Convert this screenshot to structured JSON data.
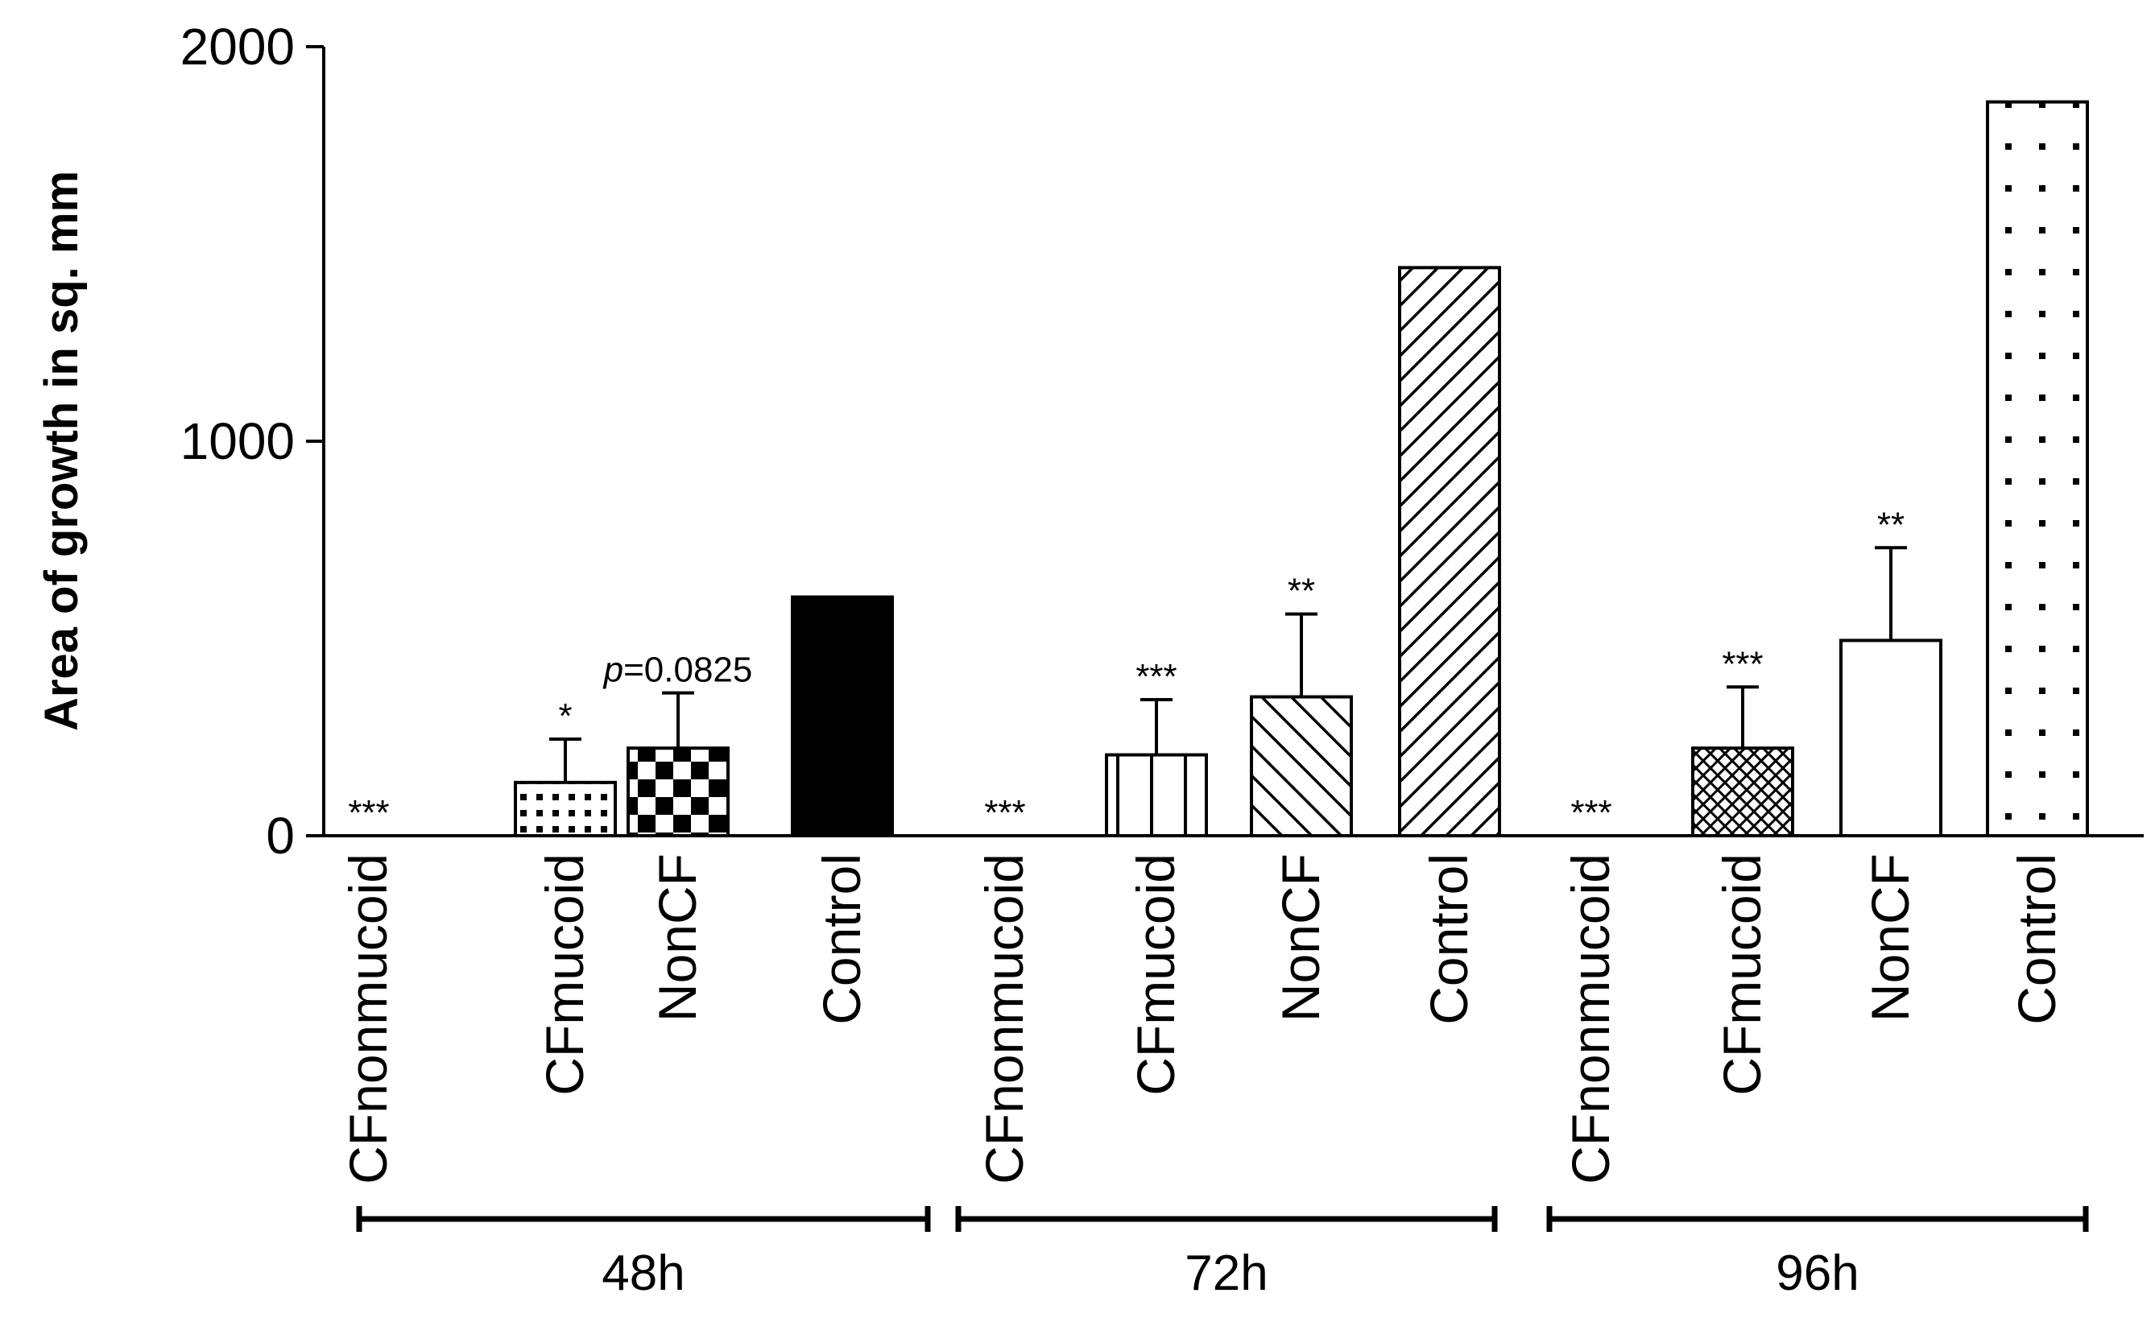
{
  "chart_data": {
    "type": "bar",
    "ylabel": "Area of growth in sq. mm",
    "xlabel": "",
    "ylim": [
      0,
      2000
    ],
    "yticks": [
      0,
      1000,
      2000
    ],
    "ytick_labels": [
      "0",
      "1000",
      "2000"
    ],
    "grid": false,
    "legend": "none",
    "groups": [
      {
        "label": "48h",
        "bars": [
          {
            "category": "CFnonmucoid",
            "value": 0,
            "error": 0,
            "annotation": "***",
            "pattern": "none"
          },
          {
            "category": "CFmucoid",
            "value": 135,
            "error": 110,
            "annotation": "*",
            "pattern": "dots-grid"
          },
          {
            "category": "NonCF",
            "value": 222,
            "error": 140,
            "annotation": "p=0.0825",
            "pattern": "checker"
          },
          {
            "category": "Control",
            "value": 605,
            "error": 0,
            "annotation": "",
            "pattern": "solid"
          }
        ]
      },
      {
        "label": "72h",
        "bars": [
          {
            "category": "CFnonmucoid",
            "value": 0,
            "error": 0,
            "annotation": "***",
            "pattern": "none"
          },
          {
            "category": "CFmucoid",
            "value": 205,
            "error": 140,
            "annotation": "***",
            "pattern": "vertical"
          },
          {
            "category": "NonCF",
            "value": 352,
            "error": 210,
            "annotation": "**",
            "pattern": "diag-back"
          },
          {
            "category": "Control",
            "value": 1440,
            "error": 0,
            "annotation": "",
            "pattern": "diag-fwd"
          }
        ]
      },
      {
        "label": "96h",
        "bars": [
          {
            "category": "CFnonmucoid",
            "value": 0,
            "error": 0,
            "annotation": "***",
            "pattern": "none"
          },
          {
            "category": "CFmucoid",
            "value": 222,
            "error": 155,
            "annotation": "***",
            "pattern": "crosshatch"
          },
          {
            "category": "NonCF",
            "value": 495,
            "error": 235,
            "annotation": "**",
            "pattern": "empty"
          },
          {
            "category": "Control",
            "value": 1860,
            "error": 0,
            "annotation": "",
            "pattern": "sparse-dots"
          }
        ]
      }
    ]
  }
}
